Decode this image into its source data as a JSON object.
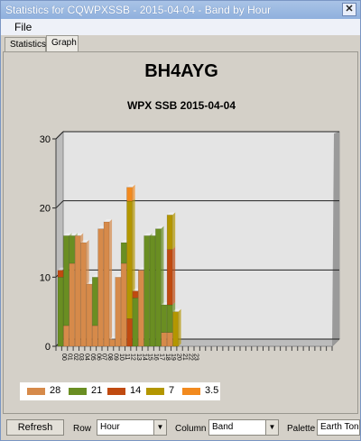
{
  "window": {
    "title": "Statistics for CQWPXSSB - 2015-04-04 - Band by Hour",
    "close_glyph": "✕"
  },
  "menu": {
    "file": "File"
  },
  "tabs": [
    {
      "label": "Statistics"
    },
    {
      "label": "Graph"
    }
  ],
  "controls": {
    "refresh_label": "Refresh",
    "row_label": "Row",
    "row_value": "Hour",
    "column_label": "Column",
    "column_value": "Band",
    "palette_label": "Palette",
    "palette_value": "Earth Tones"
  },
  "chart_data": {
    "type": "bar",
    "title": "BH4AYG",
    "subtitle": "WPX SSB 2015-04-04",
    "ylim": [
      0,
      30
    ],
    "yticks": [
      0,
      10,
      20,
      30
    ],
    "categories": [
      "00",
      "01",
      "02",
      "03",
      "04",
      "05",
      "06",
      "07",
      "08",
      "09",
      "10",
      "11",
      "12",
      "13",
      "14",
      "15",
      "16",
      "17",
      "18",
      "19",
      "20",
      "21",
      "22",
      "23"
    ],
    "series": [
      {
        "name": "28",
        "color": "#d68a4a",
        "values": [
          0,
          3,
          12,
          16,
          15,
          9,
          3,
          17,
          18,
          1,
          10,
          12,
          0,
          0,
          11,
          0,
          0,
          0,
          2,
          2,
          0,
          0,
          0,
          0
        ]
      },
      {
        "name": "21",
        "color": "#6a8e22",
        "values": [
          10,
          13,
          4,
          0,
          0,
          0,
          7,
          0,
          0,
          0,
          0,
          3,
          0,
          7,
          0,
          16,
          16,
          17,
          4,
          4,
          0,
          0,
          0,
          0
        ]
      },
      {
        "name": "14",
        "color": "#c04a10",
        "values": [
          1,
          0,
          0,
          0,
          0,
          0,
          0,
          0,
          0,
          0,
          0,
          0,
          4,
          1,
          0,
          0,
          0,
          0,
          0,
          8,
          0,
          0,
          0,
          0
        ]
      },
      {
        "name": "7",
        "color": "#b39600",
        "values": [
          0,
          0,
          0,
          0,
          0,
          0,
          0,
          0,
          0,
          0,
          0,
          0,
          17,
          0,
          0,
          0,
          0,
          0,
          0,
          5,
          5,
          0,
          0,
          0
        ]
      },
      {
        "name": "3.5",
        "color": "#f28a1e",
        "values": [
          0,
          0,
          0,
          0,
          0,
          0,
          0,
          0,
          0,
          0,
          0,
          0,
          2,
          0,
          0,
          0,
          0,
          0,
          0,
          0,
          0,
          0,
          0,
          0
        ]
      }
    ],
    "legend_position": "bottom"
  }
}
